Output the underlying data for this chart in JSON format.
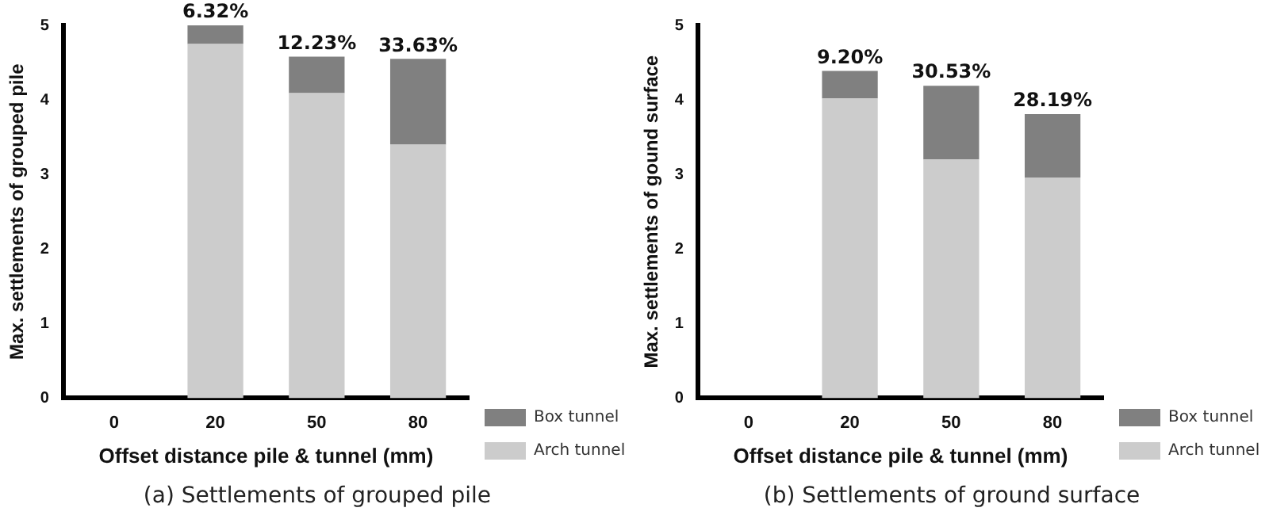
{
  "chart_data": [
    {
      "type": "bar",
      "stacked": true,
      "categories": [
        "0",
        "20",
        "50",
        "80"
      ],
      "xlabel": "Offset distance pile & tunnel (mm)",
      "ylabel": "Max. settlements of grouped pile",
      "ylim": [
        0,
        5
      ],
      "yticks": [
        0,
        1,
        2,
        3,
        4,
        5
      ],
      "grid": false,
      "legend": "bottom right",
      "series": [
        {
          "name": "Arch tunnel",
          "color": "#cccccc",
          "values": [
            null,
            4.75,
            4.09,
            3.4
          ]
        },
        {
          "name": "Box tunnel",
          "color": "#808080",
          "values": [
            null,
            0.25,
            0.49,
            1.15
          ]
        }
      ],
      "annotations": [
        {
          "text": "6.32%",
          "x": "20",
          "y": 5.0
        },
        {
          "text": "12.23%",
          "x": "50",
          "y": 4.58
        },
        {
          "text": "33.63%",
          "x": "80",
          "y": 4.55
        },
        "(a) Settlements of grouped pile"
      ]
    },
    {
      "type": "bar",
      "stacked": true,
      "categories": [
        "0",
        "20",
        "50",
        "80"
      ],
      "xlabel": "Offset distance pile & tunnel (mm)",
      "ylabel": "Max. settlements of gound surface",
      "ylim": [
        0,
        5
      ],
      "yticks": [
        0,
        1,
        2,
        3,
        4,
        5
      ],
      "grid": false,
      "legend": "bottom right",
      "series": [
        {
          "name": "Arch tunnel",
          "color": "#cccccc",
          "values": [
            null,
            4.02,
            3.2,
            2.96
          ]
        },
        {
          "name": "Box tunnel",
          "color": "#808080",
          "values": [
            null,
            0.37,
            0.99,
            0.85
          ]
        }
      ],
      "annotations": [
        {
          "text": "9.20%",
          "x": "20",
          "y": 4.39
        },
        {
          "text": "30.53%",
          "x": "50",
          "y": 4.19
        },
        {
          "text": "28.19%",
          "x": "80",
          "y": 3.81
        },
        "(b) Settlements of ground surface"
      ]
    }
  ]
}
